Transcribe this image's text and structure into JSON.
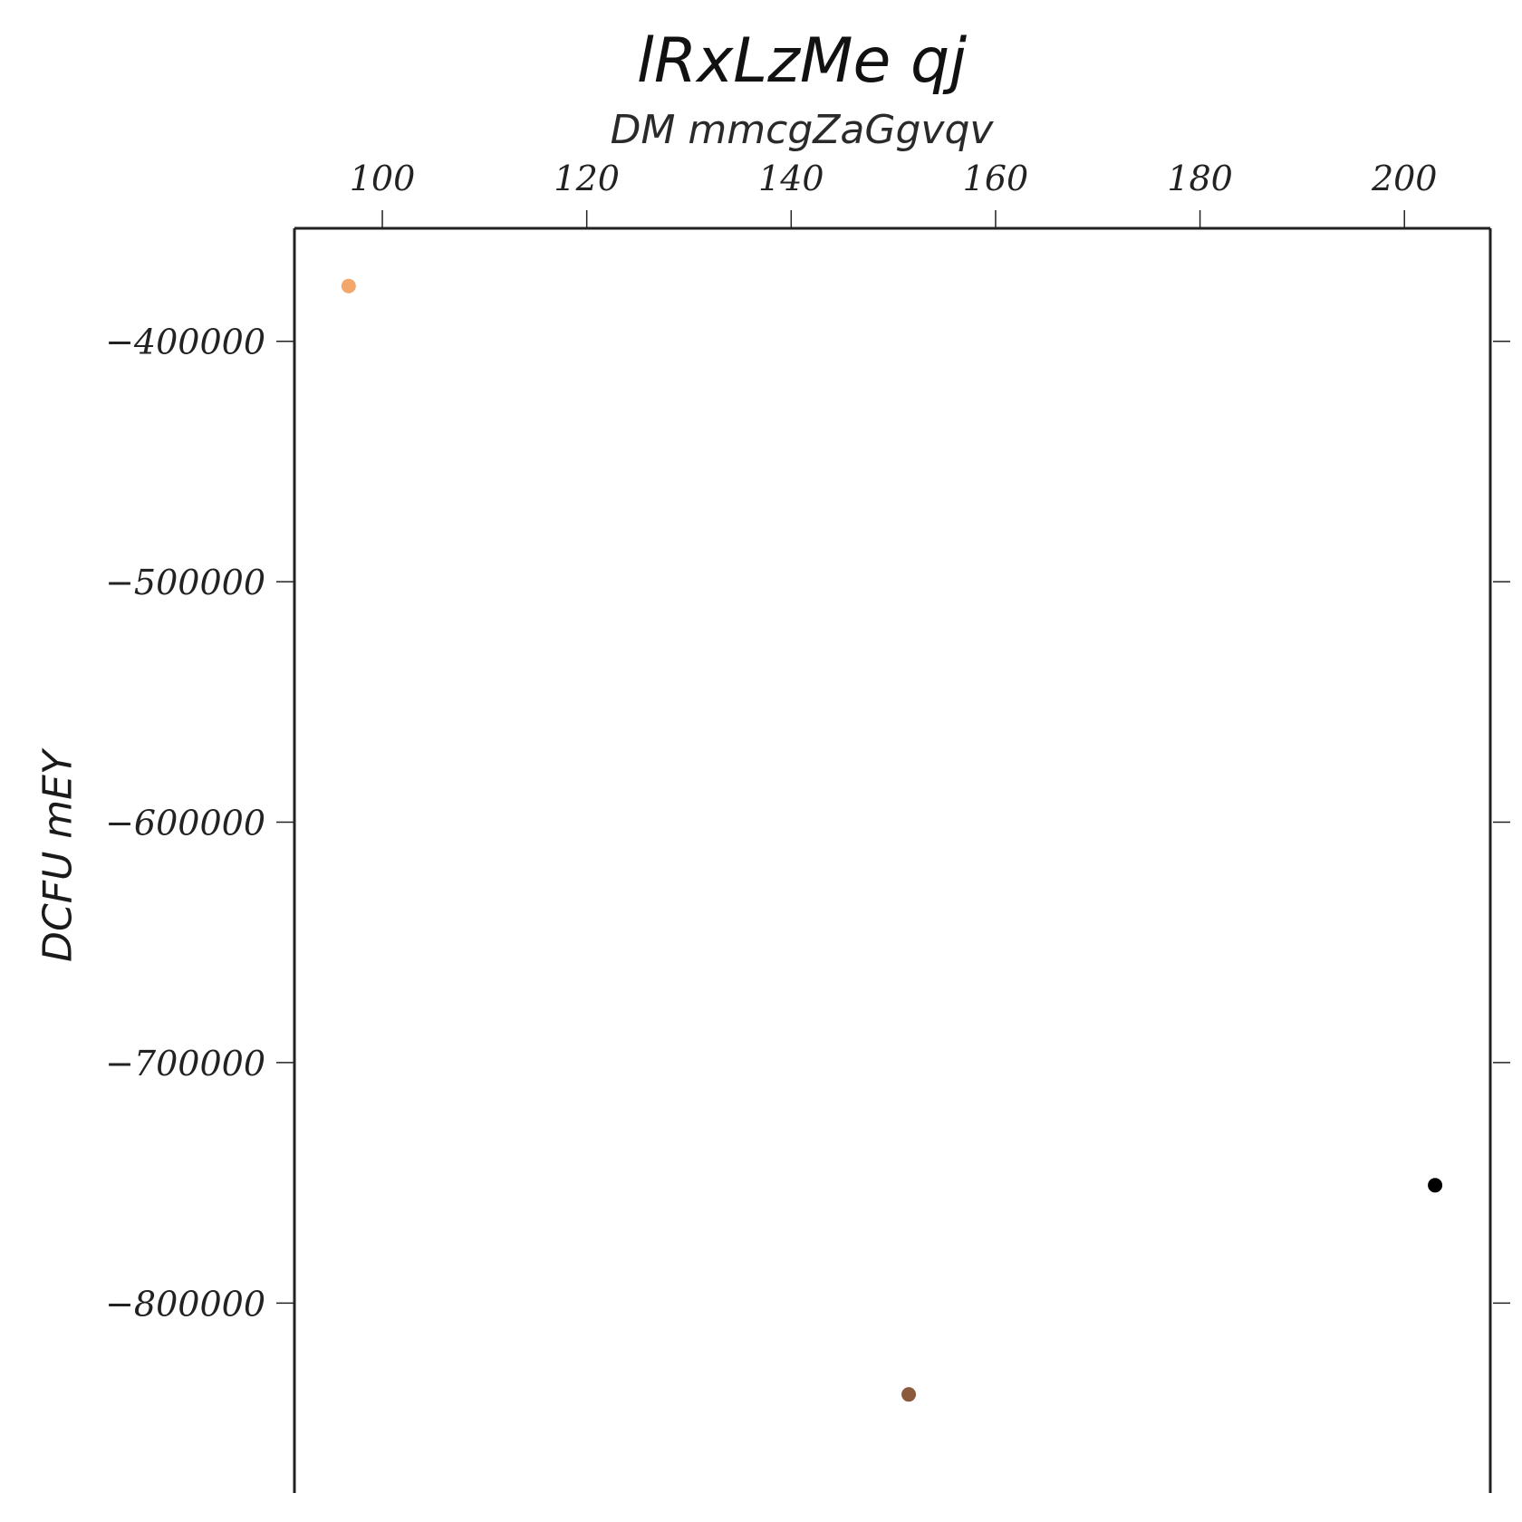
{
  "chart_data": {
    "type": "scatter",
    "title": "lRxLzMe qj",
    "xlabel": "DM mmcgZaGgvqv",
    "ylabel": "DCFU mEY",
    "xlim": [
      91.4,
      208.4
    ],
    "ylim": [
      -879000,
      -353000
    ],
    "x_ticks": [
      100,
      120,
      140,
      160,
      180,
      200
    ],
    "y_ticks": [
      -400000,
      -500000,
      -600000,
      -700000,
      -800000
    ],
    "x_axis_position": "top",
    "grid": false,
    "legend": "none",
    "points": [
      {
        "x": 96.7,
        "y": -377000,
        "color": "#f4a76b"
      },
      {
        "x": 151.5,
        "y": -838000,
        "color": "#8b5a3c"
      },
      {
        "x": 203.0,
        "y": -751000,
        "color": "#000000"
      }
    ]
  }
}
